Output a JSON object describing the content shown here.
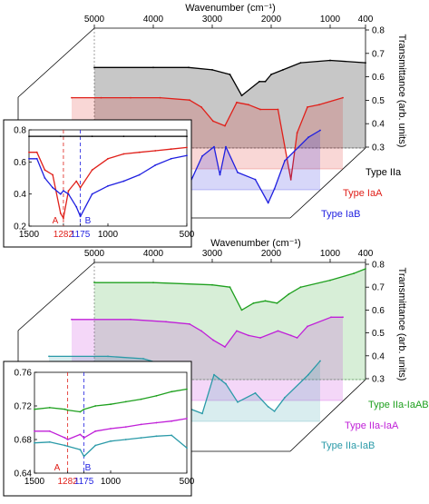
{
  "figure": {
    "top_panel": {
      "x_axis_label": "Wavenumber (cm⁻¹)",
      "x_ticks": [
        "5000",
        "4000",
        "3000",
        "2000",
        "1000",
        "400"
      ],
      "z_axis_label": "Transmittance (arb. units)",
      "z_ticks": [
        "0.8",
        "0.7",
        "0.6",
        "0.5",
        "0.4",
        "0.3"
      ],
      "series_labels": [
        {
          "label": "Type IIa",
          "color": "#000000"
        },
        {
          "label": "Type IaA",
          "color": "#e0201a"
        },
        {
          "label": "Type IaB",
          "color": "#1f1fe0"
        }
      ],
      "inset": {
        "x_ticks": [
          "1500",
          "1282",
          "1175",
          "1000",
          "500"
        ],
        "y_ticks": [
          "0.8",
          "0.6",
          "0.4",
          "0.2"
        ],
        "markers": [
          {
            "letter": "A",
            "wavenumber": "1282",
            "color": "#e0201a"
          },
          {
            "letter": "B",
            "wavenumber": "1175",
            "color": "#1f1fe0"
          }
        ]
      }
    },
    "bottom_panel": {
      "x_axis_label": "Wavenumber (cm⁻¹)",
      "x_ticks": [
        "5000",
        "4000",
        "3000",
        "2000",
        "1000",
        "400"
      ],
      "z_axis_label": "Transmittance (arb. units)",
      "z_ticks": [
        "0.8",
        "0.7",
        "0.6",
        "0.5",
        "0.4",
        "0.3"
      ],
      "series_labels": [
        {
          "label": "Type IIa-IaAB",
          "color": "#1fa01f"
        },
        {
          "label": "Type IIa-IaA",
          "color": "#c020d8"
        },
        {
          "label": "Type IIa-IaB",
          "color": "#2a9aa8"
        }
      ],
      "inset": {
        "x_ticks": [
          "1500",
          "1282",
          "1175",
          "1000",
          "500"
        ],
        "y_ticks": [
          "0.76",
          "0.72",
          "0.68",
          "0.64"
        ],
        "markers": [
          {
            "letter": "A",
            "wavenumber": "1282",
            "color": "#e0201a"
          },
          {
            "letter": "B",
            "wavenumber": "1175",
            "color": "#1f1fe0"
          }
        ]
      }
    }
  },
  "chart_data": [
    {
      "type": "line",
      "title": "",
      "xlabel": "Wavenumber (cm⁻¹)",
      "zlabel": "Transmittance (arb. units)",
      "xlim": [
        5000,
        400
      ],
      "zlim": [
        0.3,
        0.8
      ],
      "series": [
        {
          "name": "Type IIa",
          "color": "#000000",
          "x": [
            5000,
            4000,
            3400,
            3000,
            2700,
            2500,
            2200,
            2100,
            2000,
            1800,
            1500,
            1000,
            400
          ],
          "values": [
            0.64,
            0.64,
            0.64,
            0.63,
            0.61,
            0.52,
            0.58,
            0.58,
            0.61,
            0.63,
            0.66,
            0.67,
            0.66
          ]
        },
        {
          "name": "Type IaA",
          "color": "#e0201a",
          "x": [
            5000,
            4500,
            4000,
            3500,
            3000,
            2800,
            2600,
            2400,
            2200,
            2000,
            1800,
            1500,
            1282,
            1175,
            1000,
            800,
            400
          ],
          "values": [
            0.6,
            0.6,
            0.6,
            0.6,
            0.59,
            0.56,
            0.5,
            0.48,
            0.58,
            0.57,
            0.55,
            0.55,
            0.25,
            0.45,
            0.56,
            0.57,
            0.6
          ]
        },
        {
          "name": "Type IaB",
          "color": "#1f1fe0",
          "x": [
            5000,
            4500,
            4000,
            3500,
            3200,
            3000,
            2800,
            2600,
            2400,
            2200,
            2100,
            2000,
            1800,
            1500,
            1282,
            1175,
            1000,
            600,
            400
          ],
          "values": [
            0.56,
            0.56,
            0.55,
            0.54,
            0.52,
            0.49,
            0.45,
            0.33,
            0.44,
            0.48,
            0.36,
            0.48,
            0.37,
            0.34,
            0.24,
            0.3,
            0.42,
            0.52,
            0.55
          ]
        }
      ]
    },
    {
      "type": "line",
      "title": "",
      "xlabel": "Wavenumber (cm⁻¹)",
      "zlabel": "Transmittance (arb. units)",
      "xlim": [
        5000,
        400
      ],
      "zlim": [
        0.3,
        0.8
      ],
      "series": [
        {
          "name": "Type IIa-IaAB",
          "color": "#1fa01f",
          "x": [
            5000,
            4000,
            3000,
            2700,
            2500,
            2300,
            2100,
            1900,
            1700,
            1500,
            1000,
            600,
            400
          ],
          "values": [
            0.72,
            0.72,
            0.71,
            0.7,
            0.6,
            0.63,
            0.64,
            0.63,
            0.67,
            0.7,
            0.73,
            0.76,
            0.78
          ]
        },
        {
          "name": "Type IIa-IaA",
          "color": "#c020d8",
          "x": [
            5000,
            4000,
            3400,
            3000,
            2800,
            2600,
            2400,
            2200,
            2000,
            1800,
            1500,
            1282,
            1175,
            1000,
            600,
            400
          ],
          "values": [
            0.65,
            0.65,
            0.64,
            0.63,
            0.6,
            0.56,
            0.53,
            0.6,
            0.58,
            0.57,
            0.6,
            0.58,
            0.57,
            0.62,
            0.66,
            0.66
          ]
        },
        {
          "name": "Type IIa-IaB",
          "color": "#2a9aa8",
          "x": [
            5000,
            4000,
            3400,
            3000,
            2800,
            2600,
            2400,
            2200,
            2000,
            1800,
            1500,
            1282,
            1175,
            1000,
            600,
            400
          ],
          "values": [
            0.58,
            0.58,
            0.57,
            0.54,
            0.5,
            0.35,
            0.33,
            0.5,
            0.46,
            0.38,
            0.42,
            0.36,
            0.34,
            0.4,
            0.5,
            0.56
          ]
        }
      ]
    },
    {
      "type": "line",
      "title": "",
      "xlim": [
        1500,
        500
      ],
      "ylim": [
        0.2,
        0.8
      ],
      "series": [
        {
          "name": "Type IIa",
          "color": "#000000",
          "x": [
            1500,
            1300,
            1100,
            900,
            700,
            500
          ],
          "values": [
            0.76,
            0.76,
            0.76,
            0.76,
            0.76,
            0.76
          ]
        },
        {
          "name": "Type IaA",
          "color": "#e0201a",
          "x": [
            1500,
            1450,
            1400,
            1350,
            1300,
            1282,
            1250,
            1200,
            1175,
            1100,
            1000,
            900,
            800,
            700,
            600,
            500
          ],
          "values": [
            0.66,
            0.66,
            0.55,
            0.52,
            0.28,
            0.25,
            0.42,
            0.48,
            0.44,
            0.55,
            0.62,
            0.65,
            0.66,
            0.67,
            0.68,
            0.69
          ]
        },
        {
          "name": "Type IaB",
          "color": "#1f1fe0",
          "x": [
            1500,
            1450,
            1400,
            1350,
            1300,
            1282,
            1250,
            1200,
            1175,
            1100,
            1000,
            900,
            800,
            700,
            600,
            500
          ],
          "values": [
            0.62,
            0.62,
            0.5,
            0.44,
            0.4,
            0.42,
            0.4,
            0.32,
            0.26,
            0.4,
            0.45,
            0.48,
            0.52,
            0.58,
            0.62,
            0.64
          ]
        }
      ]
    },
    {
      "type": "line",
      "title": "",
      "xlim": [
        1500,
        500
      ],
      "ylim": [
        0.64,
        0.76
      ],
      "series": [
        {
          "name": "Type IIa-IaAB",
          "color": "#1fa01f",
          "x": [
            1500,
            1400,
            1300,
            1282,
            1200,
            1175,
            1100,
            1000,
            900,
            800,
            700,
            600,
            500
          ],
          "values": [
            0.716,
            0.718,
            0.716,
            0.715,
            0.713,
            0.716,
            0.72,
            0.722,
            0.725,
            0.728,
            0.732,
            0.737,
            0.74
          ]
        },
        {
          "name": "Type IIa-IaA",
          "color": "#c020d8",
          "x": [
            1500,
            1400,
            1300,
            1282,
            1200,
            1175,
            1100,
            1000,
            900,
            800,
            700,
            600,
            500
          ],
          "values": [
            0.69,
            0.69,
            0.682,
            0.68,
            0.686,
            0.682,
            0.69,
            0.693,
            0.695,
            0.698,
            0.7,
            0.702,
            0.705
          ]
        },
        {
          "name": "Type IIa-IaB",
          "color": "#2a9aa8",
          "x": [
            1500,
            1400,
            1300,
            1282,
            1200,
            1175,
            1100,
            1000,
            900,
            800,
            700,
            600,
            500
          ],
          "values": [
            0.676,
            0.677,
            0.673,
            0.672,
            0.668,
            0.66,
            0.673,
            0.678,
            0.68,
            0.682,
            0.684,
            0.685,
            0.67
          ]
        }
      ]
    }
  ]
}
